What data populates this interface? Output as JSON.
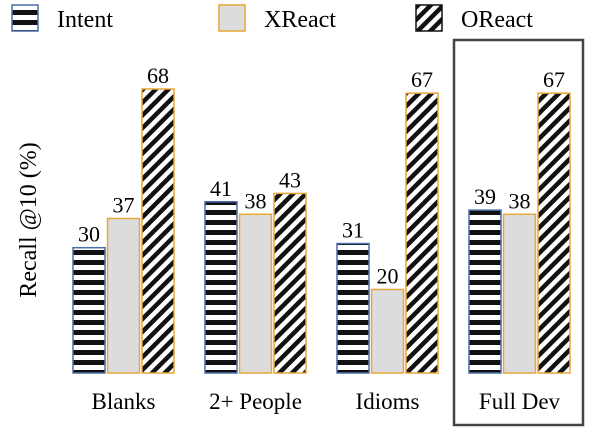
{
  "chart_data": {
    "type": "bar",
    "categories": [
      "Blanks",
      "2+ People",
      "Idioms",
      "Full Dev"
    ],
    "series": [
      {
        "name": "Intent",
        "values": [
          30,
          41,
          31,
          39
        ],
        "pattern": "horizontal-stripes",
        "fill": "#111111",
        "edge": "#4a6fa8"
      },
      {
        "name": "XReact",
        "values": [
          37,
          38,
          20,
          38
        ],
        "pattern": "solid",
        "fill": "#dcdcdc",
        "edge": "#e8a73a"
      },
      {
        "name": "OReact",
        "values": [
          68,
          43,
          67,
          67
        ],
        "pattern": "diagonal-stripes",
        "fill": "#111111",
        "edge": "#e8a73a"
      }
    ],
    "ylabel": "Recall @10 (%)",
    "xlabel": "",
    "ylim": [
      0,
      68
    ],
    "grid": false,
    "legend": "top",
    "highlighted_category": "Full Dev"
  }
}
